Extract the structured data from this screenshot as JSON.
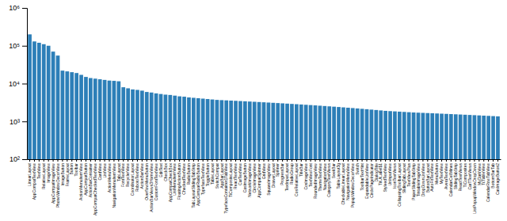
{
  "chart_data": {
    "type": "bar",
    "categories": [
      "LinearLayout",
      "AppCompatTextView",
      "TextView",
      "RelativeLayout",
      "ImageView",
      "AppCompatImageView",
      "PhoneWindowDecorView",
      "ImageButton",
      "FrameLayout",
      "Button",
      "Toolbar",
      "ActionMenuItemView",
      "AppCompatButton",
      "ActionBarContainer",
      "AppCompatCheckedTextView",
      "CardView",
      "ListView",
      "ActionMenuView",
      "NavigationMenuItemView",
      "TabLayout",
      "FontTextView",
      "RecyclerView",
      "CoordinatorLayout",
      "RobotoTextView",
      "ActionBarView",
      "OverflowMenuButton",
      "ActionBarViews3HomeView",
      "CustomFontTextView",
      "EditText",
      "CheckBox",
      "AppCompatCheckBox",
      "ListMenuItemView",
      "FloatingActionButton",
      "CheckedTextView",
      "RadioButton",
      "TabLayoutSlidingTabStrip",
      "AppCompatRadioButton",
      "TypefaceTextView",
      "ToggleButton",
      "TableLayout",
      "SwitchCompat",
      "AppBarLayout",
      "TypefaceContainer1TabView",
      "TiCompositeLayout",
      "ReactTextView",
      "CarTextView",
      "CasImageButton",
      "NetworkImageView",
      "CircleImageView",
      "AppCompatSpinner",
      "GridView",
      "SquareImageView",
      "DrawerLayout",
      "Spinner",
      "ProgressBar",
      "TextInputLayout",
      "RadioGroup",
      "CosRelativeLayout",
      "TitleBar",
      "CosImageView",
      "TextViewFont",
      "RoundedImageView",
      "ThemeTextView",
      "NavigationView",
      "CategoryTextViews",
      "SeekBar",
      "TableLayout3g",
      "CheckableLinearLayout",
      "NavigationMenuView",
      "PopupWindowDecorView",
      "Switch",
      "ToolbarTextHint",
      "ExpandableListView",
      "CirclePageIndicator",
      "DialogTitle",
      "TitUtLabel$1",
      "StyleedTextView",
      "UnInputView",
      "IconTextViews",
      "CollapsingToolbarLayout",
      "SlidingTabLayout",
      "TextViewPlus",
      "PaperSlidingTabStrip",
      "TintableImageView",
      "DropDownListView",
      "ButtonBarLayout",
      "AutoFitTextView",
      "MenuButton",
      "MyTextView",
      "AveraTextView",
      "CalendarCellMines",
      "SlidingTabStrip",
      "ReactTextViews",
      "TiComposites",
      "CarTTextViews",
      "ListPopupWindowDropDown",
      "MyDarkView",
      "TcTableView",
      "CalendarRowTabView",
      "BottomBarTab",
      "CasImageButton2"
    ],
    "values": [
      200000,
      130000,
      120000,
      110000,
      100000,
      70000,
      55000,
      22000,
      21000,
      20000,
      19000,
      17000,
      15000,
      14000,
      13500,
      13000,
      12500,
      12000,
      11800,
      11500,
      8000,
      7500,
      7000,
      6800,
      6500,
      6000,
      5800,
      5500,
      5300,
      5100,
      5000,
      4800,
      4600,
      4500,
      4300,
      4200,
      4100,
      4000,
      3900,
      3800,
      3700,
      3650,
      3600,
      3550,
      3500,
      3450,
      3400,
      3350,
      3300,
      3250,
      3200,
      3150,
      3100,
      3050,
      3000,
      2950,
      2900,
      2850,
      2800,
      2750,
      2700,
      2650,
      2600,
      2550,
      2500,
      2450,
      2400,
      2350,
      2300,
      2250,
      2200,
      2150,
      2100,
      2050,
      2000,
      1950,
      1900,
      1870,
      1840,
      1810,
      1780,
      1750,
      1720,
      1700,
      1680,
      1660,
      1640,
      1620,
      1600,
      1580,
      1560,
      1540,
      1520,
      1500,
      1480,
      1460,
      1440,
      1420,
      1400,
      1380,
      1360
    ],
    "color": "#2d7fb8",
    "log": "y",
    "ylim": [
      100,
      1000000
    ],
    "yticks": [
      {
        "value": 100,
        "label": "10²"
      },
      {
        "value": 1000,
        "label": "10³"
      },
      {
        "value": 10000,
        "label": "10⁴"
      },
      {
        "value": 100000,
        "label": "10⁵"
      },
      {
        "value": 1000000,
        "label": "10⁶"
      }
    ],
    "grid": false
  }
}
